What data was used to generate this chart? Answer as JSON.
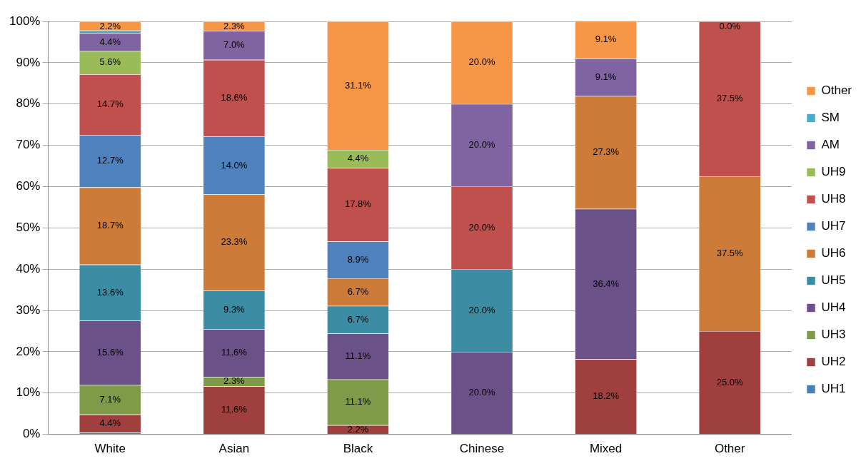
{
  "chart_data": {
    "type": "bar",
    "stacked": true,
    "categories": [
      "White",
      "Asian",
      "Black",
      "Chinese",
      "Mixed",
      "Other"
    ],
    "ylim": [
      0,
      100
    ],
    "yticks": [
      {
        "value": 0,
        "label": "0%"
      },
      {
        "value": 10,
        "label": "10%"
      },
      {
        "value": 20,
        "label": "20%"
      },
      {
        "value": 30,
        "label": "30%"
      },
      {
        "value": 40,
        "label": "40%"
      },
      {
        "value": 50,
        "label": "50%"
      },
      {
        "value": 60,
        "label": "60%"
      },
      {
        "value": 70,
        "label": "70%"
      },
      {
        "value": 80,
        "label": "80%"
      },
      {
        "value": 90,
        "label": "90%"
      },
      {
        "value": 100,
        "label": "100%"
      }
    ],
    "grid": "y",
    "legend": "right",
    "series": [
      {
        "name": "UH1",
        "color": "#4a7ebb",
        "values": [
          0.4,
          null,
          null,
          null,
          null,
          null
        ],
        "value_labels": [
          null,
          null,
          null,
          null,
          null,
          null
        ]
      },
      {
        "name": "UH2",
        "color": "#a0403e",
        "values": [
          4.4,
          11.6,
          2.2,
          null,
          18.2,
          25.0
        ],
        "value_labels": [
          "4.4%",
          "11.6%",
          "2.2%",
          null,
          "18.2%",
          "25.0%"
        ]
      },
      {
        "name": "UH3",
        "color": "#7f9a48",
        "values": [
          7.1,
          2.3,
          11.1,
          null,
          null,
          null
        ],
        "value_labels": [
          "7.1%",
          "2.3%",
          "11.1%",
          null,
          null,
          null
        ]
      },
      {
        "name": "UH4",
        "color": "#6a5187",
        "values": [
          15.6,
          11.6,
          11.1,
          20.0,
          36.4,
          null
        ],
        "value_labels": [
          "15.6%",
          "11.6%",
          "11.1%",
          "20.0%",
          "36.4%",
          null
        ]
      },
      {
        "name": "UH5",
        "color": "#3c8da3",
        "values": [
          13.6,
          9.3,
          6.7,
          20.0,
          null,
          null
        ],
        "value_labels": [
          "13.6%",
          "9.3%",
          "6.7%",
          "20.0%",
          null,
          null
        ]
      },
      {
        "name": "UH6",
        "color": "#cc7b38",
        "values": [
          18.7,
          23.3,
          6.7,
          null,
          27.3,
          37.5
        ],
        "value_labels": [
          "18.7%",
          "23.3%",
          "6.7%",
          null,
          "27.3%",
          "37.5%"
        ]
      },
      {
        "name": "UH7",
        "color": "#4f81bd",
        "values": [
          12.7,
          14.0,
          8.9,
          null,
          null,
          null
        ],
        "value_labels": [
          "12.7%",
          "14.0%",
          "8.9%",
          null,
          null,
          null
        ]
      },
      {
        "name": "UH8",
        "color": "#c0504d",
        "values": [
          14.7,
          18.6,
          17.8,
          20.0,
          null,
          37.5
        ],
        "value_labels": [
          "14.7%",
          "18.6%",
          "17.8%",
          "20.0%",
          null,
          "37.5%"
        ]
      },
      {
        "name": "UH9",
        "color": "#9bbb59",
        "values": [
          5.6,
          null,
          4.4,
          null,
          null,
          null
        ],
        "value_labels": [
          "5.6%",
          null,
          "4.4%",
          null,
          null,
          null
        ]
      },
      {
        "name": "AM",
        "color": "#8064a2",
        "values": [
          4.4,
          7.0,
          null,
          20.0,
          9.1,
          null
        ],
        "value_labels": [
          "4.4%",
          "7.0%",
          null,
          "20.0%",
          "9.1%",
          null
        ]
      },
      {
        "name": "SM",
        "color": "#4bacc6",
        "values": [
          0.6,
          null,
          null,
          null,
          null,
          null
        ],
        "value_labels": [
          null,
          null,
          null,
          null,
          null,
          null
        ]
      },
      {
        "name": "Other",
        "color": "#f79646",
        "values": [
          2.2,
          2.3,
          31.1,
          20.0,
          9.1,
          0.0
        ],
        "value_labels": [
          "2.2%",
          "2.3%",
          "31.1%",
          "20.0%",
          "9.1%",
          "0.0%"
        ]
      }
    ]
  }
}
